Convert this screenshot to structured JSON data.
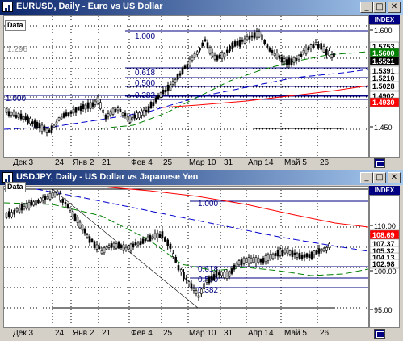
{
  "windows": [
    {
      "title": "EURUSD, Daily - Euro vs US Dollar",
      "data_label": "Data",
      "index_label": "INDEX",
      "dates": [
        "Дек 3",
        "24",
        "Янв 2",
        "21",
        "Фев 4",
        "25",
        "Мар 10",
        "31",
        "Апр 14",
        "Май 5",
        "26"
      ],
      "fib_labels": [
        "1.000",
        "1.296",
        "0.618",
        "0.500",
        "0.382",
        "1.000"
      ],
      "scale_ticks": [
        "1.600",
        "1.450"
      ],
      "price_tags": [
        {
          "text": "1.5753",
          "bg": "#ffffff",
          "fg": "#000000"
        },
        {
          "text": "1.5600",
          "bg": "#008000",
          "fg": "#ffffff"
        },
        {
          "text": "1.5521",
          "bg": "#000000",
          "fg": "#ffffff"
        },
        {
          "text": "1.5391",
          "bg": "#ffffff",
          "fg": "#000000"
        },
        {
          "text": "1.5210",
          "bg": "#ffffff",
          "fg": "#000000"
        },
        {
          "text": "1.5028",
          "bg": "#ffffff",
          "fg": "#000000"
        },
        {
          "text": "1.4902",
          "bg": "#ffffff",
          "fg": "#000000"
        },
        {
          "text": "1.4930",
          "bg": "#ff0000",
          "fg": "#ffffff"
        }
      ]
    },
    {
      "title": "USDJPY, Daily - US Dollar vs Japanese Yen",
      "data_label": "Data",
      "index_label": "INDEX",
      "dates": [
        "Дек 3",
        "24",
        "Янв 2",
        "21",
        "Фев 4",
        "25",
        "Мар 10",
        "31",
        "Апр 14",
        "Май 5",
        "26"
      ],
      "fib_labels": [
        "1.000",
        "0.618",
        "0.500",
        "0.382"
      ],
      "scale_ticks": [
        "110.00",
        "100.00",
        "95.00"
      ],
      "price_tags": [
        {
          "text": "108.69",
          "bg": "#ff0000",
          "fg": "#ffffff"
        },
        {
          "text": "107.37",
          "bg": "#ffffff",
          "fg": "#000000"
        },
        {
          "text": "105.32",
          "bg": "#ffffff",
          "fg": "#000000"
        },
        {
          "text": "104.13",
          "bg": "#ffffff",
          "fg": "#000000"
        },
        {
          "text": "102.98",
          "bg": "#ffffff",
          "fg": "#000000"
        }
      ]
    }
  ],
  "colors": {
    "candle": "#000000",
    "ma_fast": "#008000",
    "ma_mid": "#0000cd",
    "ma_slow": "#ff0000",
    "fib": "#000080"
  }
}
